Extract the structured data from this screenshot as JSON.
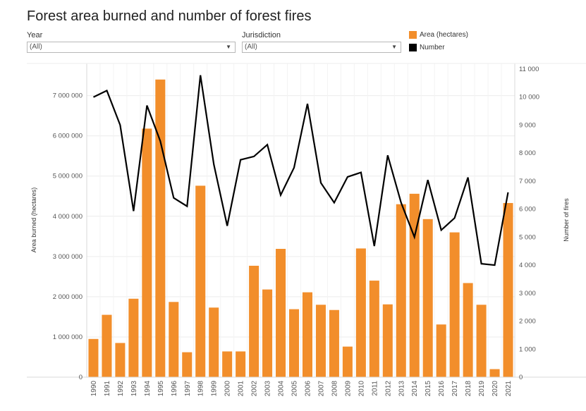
{
  "title": "Forest area burned and number of forest fires",
  "filters": {
    "year": {
      "label": "Year",
      "value": "(All)"
    },
    "jurisdiction": {
      "label": "Jurisdiction",
      "value": "(All)"
    }
  },
  "legend": [
    {
      "label": "Area (hectares)",
      "color": "#F28E2B"
    },
    {
      "label": "Number",
      "color": "#000000"
    }
  ],
  "icons": {
    "dropdown": "chevron-down-icon"
  },
  "chart_data": {
    "type": "bar",
    "categories": [
      "1990",
      "1991",
      "1992",
      "1993",
      "1994",
      "1995",
      "1996",
      "1997",
      "1998",
      "1999",
      "2000",
      "2001",
      "2002",
      "2003",
      "2004",
      "2005",
      "2006",
      "2007",
      "2008",
      "2009",
      "2010",
      "2011",
      "2012",
      "2013",
      "2014",
      "2015",
      "2016",
      "2017",
      "2018",
      "2019",
      "2020",
      "2021"
    ],
    "series": [
      {
        "name": "Area (hectares)",
        "type": "bar",
        "axis": "left",
        "color": "#F28E2B",
        "values": [
          950000,
          1550000,
          850000,
          1950000,
          6180000,
          7400000,
          1870000,
          620000,
          4760000,
          1730000,
          640000,
          640000,
          2770000,
          2180000,
          3190000,
          1690000,
          2110000,
          1800000,
          1670000,
          760000,
          3200000,
          2400000,
          1810000,
          4300000,
          4560000,
          3930000,
          1310000,
          3600000,
          2340000,
          1800000,
          200000,
          4330000
        ]
      },
      {
        "name": "Number",
        "type": "line",
        "axis": "right",
        "color": "#000000",
        "values": [
          10000,
          10230,
          9000,
          5930,
          9700,
          8430,
          6400,
          6100,
          10780,
          7600,
          5400,
          7760,
          7880,
          8300,
          6500,
          7480,
          9760,
          6940,
          6230,
          7150,
          7310,
          4680,
          7920,
          6230,
          5000,
          7040,
          5250,
          5680,
          7130,
          4050,
          4000,
          6600
        ]
      }
    ],
    "ylabel": "Area burned (hectares)",
    "y2label": "Number of fires",
    "ylim": [
      0,
      7800000
    ],
    "y2lim": [
      0,
      11200
    ],
    "yticks": [
      0,
      1000000,
      2000000,
      3000000,
      4000000,
      5000000,
      6000000,
      7000000
    ],
    "ytick_labels": [
      "0",
      "1 000 000",
      "2 000 000",
      "3 000 000",
      "4 000 000",
      "5 000 000",
      "6 000 000",
      "7 000 000"
    ],
    "y2ticks": [
      0,
      1000,
      2000,
      3000,
      4000,
      5000,
      6000,
      7000,
      8000,
      9000,
      10000,
      11000
    ],
    "y2tick_labels": [
      "0",
      "1 000",
      "2 000",
      "3 000",
      "4 000",
      "5 000",
      "6 000",
      "7 000",
      "8 000",
      "9 000",
      "10 000",
      "11 000"
    ],
    "grid": true,
    "legend_position": "top-right"
  }
}
